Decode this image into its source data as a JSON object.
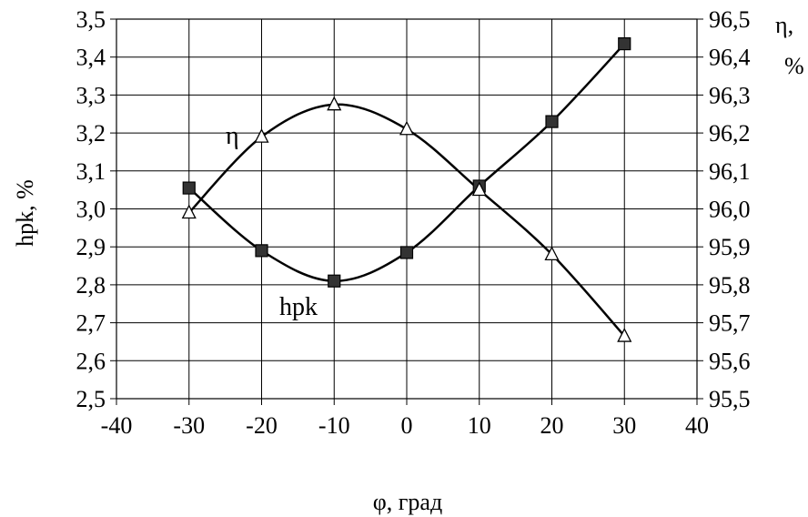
{
  "chart_data": {
    "type": "line",
    "xlabel": "φ, град",
    "ylabel_left": "hpk, %",
    "ylabel_right_line1": "η,",
    "ylabel_right_line2": "%",
    "xlim": [
      -40,
      40
    ],
    "xticks": [
      -40,
      -30,
      -20,
      -10,
      0,
      10,
      20,
      30,
      40
    ],
    "xtick_labels": [
      "-40",
      "-30",
      "-20",
      "-10",
      "0",
      "10",
      "20",
      "30",
      "40"
    ],
    "ylim_left": [
      2.5,
      3.5
    ],
    "yticks_left": [
      "2,5",
      "2,6",
      "2,7",
      "2,8",
      "2,9",
      "3,0",
      "3,1",
      "3,2",
      "3,3",
      "3,4",
      "3,5"
    ],
    "ylim_right": [
      95.5,
      96.5
    ],
    "yticks_right": [
      "95,5",
      "95,6",
      "95,7",
      "95,8",
      "95,9",
      "96,0",
      "96,1",
      "96,2",
      "96,3",
      "96,4",
      "96,5"
    ],
    "grid": true,
    "x": [
      -30,
      -20,
      -10,
      0,
      10,
      20,
      30
    ],
    "series": [
      {
        "name": "hpk",
        "axis": "left",
        "marker": "square-filled",
        "color": "#000000",
        "values": [
          3.055,
          2.89,
          2.81,
          2.885,
          3.06,
          3.23,
          3.435
        ]
      },
      {
        "name": "η",
        "axis": "right",
        "marker": "triangle-open",
        "color": "#000000",
        "values": [
          95.99,
          96.19,
          96.275,
          96.21,
          96.05,
          95.88,
          95.665
        ]
      }
    ]
  }
}
